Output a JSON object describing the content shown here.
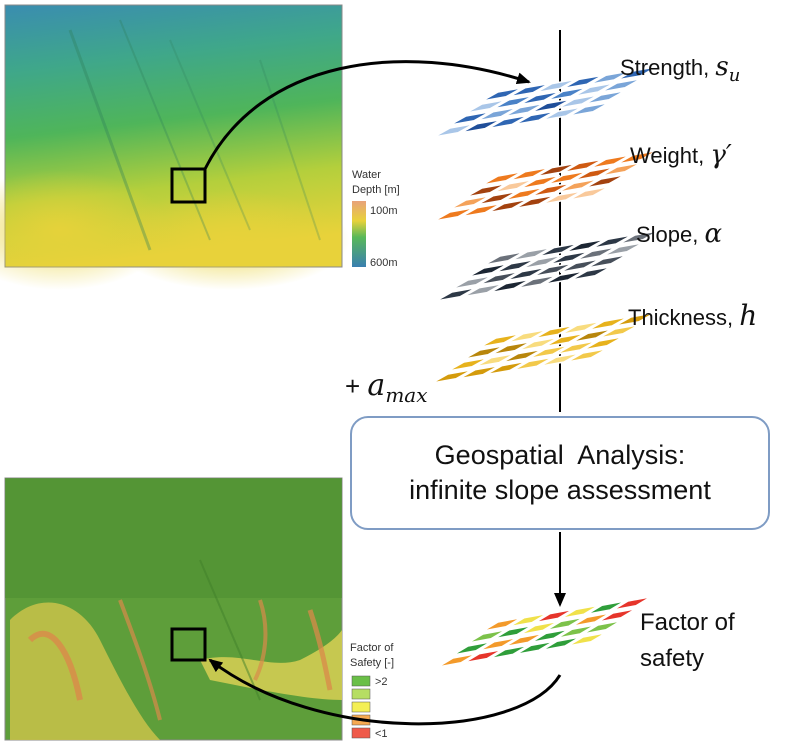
{
  "top_map": {
    "legend_title_line1": "Water",
    "legend_title_line2": "Depth [m]",
    "legend_max": "100m",
    "legend_min": "600m"
  },
  "bottom_map": {
    "legend_title_line1": "Factor of",
    "legend_title_line2": "Safety [-]",
    "legend_items": [
      {
        "label": ">2",
        "color": "#6abf47"
      },
      {
        "label": "",
        "color": "#b6de63"
      },
      {
        "label": "",
        "color": "#f4ef55"
      },
      {
        "label": "",
        "color": "#f6aa52"
      },
      {
        "label": "<1",
        "color": "#ef5a4a"
      }
    ]
  },
  "layers": [
    {
      "name": "Strength, ",
      "symbol": "s",
      "subscript": "u"
    },
    {
      "name": "Weight, ",
      "symbol": "γ′",
      "subscript": ""
    },
    {
      "name": "Slope, ",
      "symbol": "α",
      "subscript": ""
    },
    {
      "name": "Thickness, ",
      "symbol": "h",
      "subscript": ""
    }
  ],
  "amax_label": {
    "prefix": "+ ",
    "symbol": "a",
    "subscript": "max"
  },
  "analysis": {
    "line1": "Geospatial  Analysis:",
    "line2": "infinite slope assessment"
  },
  "output": {
    "line1": "Factor of",
    "line2": "safety"
  },
  "colors": {
    "strength": [
      "#1f4e99",
      "#2f66b3",
      "#4a82c7",
      "#7aa5d8",
      "#a9c6e8"
    ],
    "weight": [
      "#a3420f",
      "#cf5a12",
      "#ee7a1e",
      "#f4a25a",
      "#f9c99b"
    ],
    "slope": [
      "#1c2633",
      "#2d3846",
      "#474f5a",
      "#6b717a",
      "#9aa0a7"
    ],
    "thickness": [
      "#b8860b",
      "#d49b0c",
      "#e7b21c",
      "#f2c94a",
      "#f8dc7e"
    ],
    "fos": [
      "#2f9e3a",
      "#7cc24a",
      "#f0e14a",
      "#f39a2a",
      "#e6352b"
    ]
  }
}
